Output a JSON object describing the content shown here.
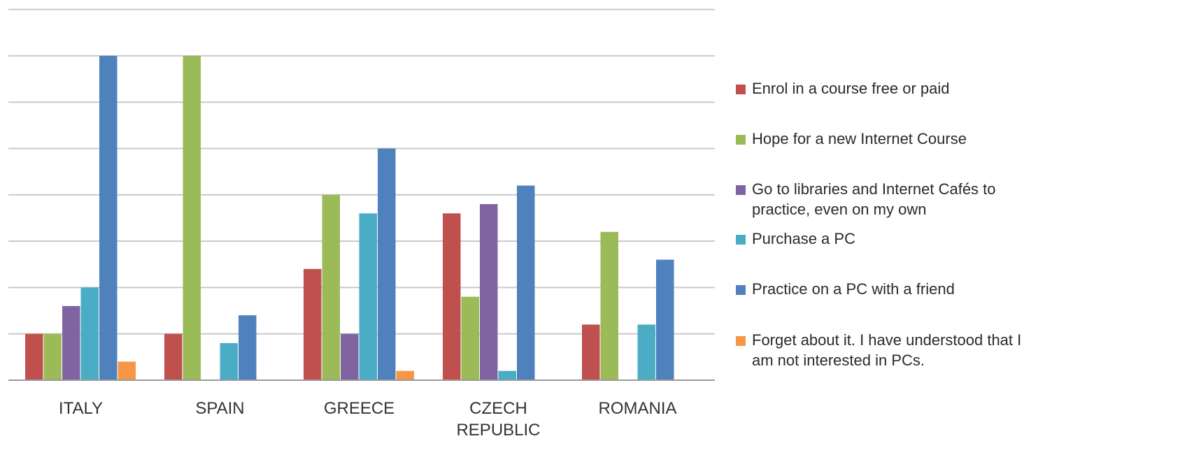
{
  "chart_data": {
    "type": "bar",
    "title": "",
    "xlabel": "",
    "ylabel": "",
    "ylim": [
      0,
      8
    ],
    "grid": true,
    "legend_position": "right",
    "categories": [
      [
        "ITALY"
      ],
      [
        "SPAIN"
      ],
      [
        "GREECE"
      ],
      [
        "CZECH",
        "REPUBLIC"
      ],
      [
        "ROMANIA"
      ]
    ],
    "series": [
      {
        "name": [
          "Enrol in a course free or paid"
        ],
        "color": "#c0504d",
        "values": [
          1,
          1,
          2.4,
          3.6,
          1.2
        ]
      },
      {
        "name": [
          "Hope for a new Internet Course"
        ],
        "color": "#9bbb59",
        "values": [
          1,
          7,
          4,
          1.8,
          3.2
        ]
      },
      {
        "name": [
          "Go to libraries and Internet Cafés to",
          "practice, even on my own"
        ],
        "color": "#8064a2",
        "values": [
          1.6,
          0,
          1,
          3.8,
          0
        ]
      },
      {
        "name": [
          "Purchase a PC"
        ],
        "color": "#4bacc6",
        "values": [
          2,
          0.8,
          3.6,
          0.2,
          1.2
        ]
      },
      {
        "name": [
          "Practice on a PC with a friend"
        ],
        "color": "#4f81bd",
        "values": [
          7,
          1.4,
          5,
          4.2,
          2.6
        ]
      },
      {
        "name": [
          "Forget about it. I have understood that I",
          "am not interested in PCs."
        ],
        "color": "#f79646",
        "values": [
          0.4,
          0,
          0.2,
          0,
          0
        ]
      }
    ]
  }
}
